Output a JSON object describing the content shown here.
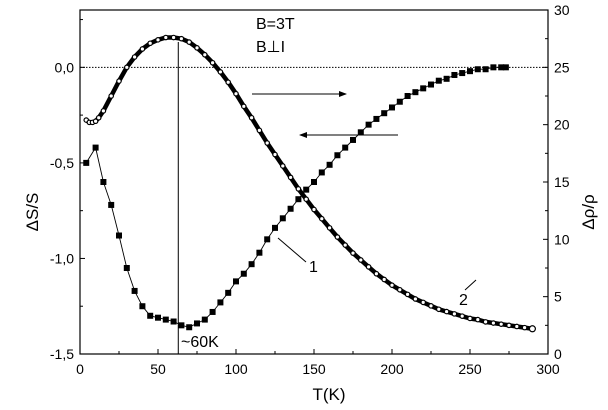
{
  "chart_data": {
    "type": "line",
    "title": "",
    "xlabel": "T(K)",
    "ylabel_left": "ΔS/S",
    "ylabel_right": "Δρ/ρ",
    "xlim": [
      0,
      300
    ],
    "ylim_left": [
      -1.5,
      0.3
    ],
    "ylim_right": [
      0,
      30
    ],
    "xticks": [
      0,
      50,
      100,
      150,
      200,
      250,
      300
    ],
    "yticks_left": [
      -1.5,
      -1.0,
      -0.5,
      0.0
    ],
    "ytick_labels_left": [
      "-1,5",
      "-1,0",
      "-0,5",
      "0,0"
    ],
    "yticks_right": [
      0,
      5,
      10,
      15,
      20,
      25,
      30
    ],
    "grid": false,
    "annotations": {
      "field": "B=3T",
      "orientation": "B⊥I",
      "temperature": "~60K",
      "label_1": "1",
      "label_2": "2"
    },
    "series": [
      {
        "id": "1",
        "axis": "left",
        "marker": "square",
        "x": [
          4,
          10,
          15,
          20,
          25,
          30,
          35,
          40,
          45,
          50,
          55,
          60,
          65,
          70,
          75,
          80,
          85,
          90,
          95,
          100,
          105,
          110,
          115,
          120,
          125,
          130,
          135,
          140,
          145,
          150,
          155,
          160,
          165,
          170,
          175,
          180,
          185,
          190,
          195,
          200,
          205,
          210,
          215,
          220,
          225,
          230,
          235,
          240,
          245,
          250,
          255,
          260,
          265,
          270,
          273
        ],
        "y": [
          -0.5,
          -0.42,
          -0.6,
          -0.72,
          -0.88,
          -1.05,
          -1.17,
          -1.25,
          -1.3,
          -1.31,
          -1.32,
          -1.33,
          -1.35,
          -1.36,
          -1.34,
          -1.32,
          -1.28,
          -1.23,
          -1.18,
          -1.12,
          -1.08,
          -1.03,
          -0.97,
          -0.9,
          -0.84,
          -0.79,
          -0.74,
          -0.69,
          -0.64,
          -0.6,
          -0.55,
          -0.51,
          -0.46,
          -0.42,
          -0.38,
          -0.34,
          -0.3,
          -0.27,
          -0.24,
          -0.21,
          -0.18,
          -0.15,
          -0.13,
          -0.11,
          -0.09,
          -0.07,
          -0.06,
          -0.04,
          -0.03,
          -0.02,
          -0.01,
          -0.01,
          0.0,
          0.0,
          0.0
        ]
      },
      {
        "id": "2",
        "axis": "right",
        "marker": "circle",
        "x": [
          4,
          6,
          8,
          10,
          12,
          15,
          20,
          25,
          30,
          35,
          40,
          45,
          50,
          55,
          60,
          65,
          70,
          75,
          80,
          85,
          90,
          95,
          100,
          105,
          110,
          115,
          120,
          125,
          130,
          135,
          140,
          145,
          150,
          155,
          160,
          165,
          170,
          175,
          180,
          185,
          190,
          195,
          200,
          205,
          210,
          215,
          220,
          225,
          230,
          235,
          240,
          245,
          250,
          255,
          260,
          265,
          270,
          275,
          280,
          285,
          290
        ],
        "y": [
          20.4,
          20.2,
          20.2,
          20.3,
          20.6,
          21.2,
          22.5,
          23.8,
          25.0,
          25.9,
          26.6,
          27.1,
          27.4,
          27.6,
          27.6,
          27.5,
          27.2,
          26.7,
          26.1,
          25.4,
          24.6,
          23.7,
          22.7,
          21.6,
          20.6,
          19.5,
          18.4,
          17.4,
          16.4,
          15.4,
          14.4,
          13.5,
          12.6,
          11.8,
          11.0,
          10.2,
          9.5,
          8.8,
          8.2,
          7.6,
          7.0,
          6.5,
          6.0,
          5.6,
          5.2,
          4.8,
          4.5,
          4.2,
          3.9,
          3.7,
          3.5,
          3.3,
          3.1,
          3.0,
          2.8,
          2.7,
          2.6,
          2.5,
          2.4,
          2.3,
          2.2
        ]
      }
    ]
  }
}
